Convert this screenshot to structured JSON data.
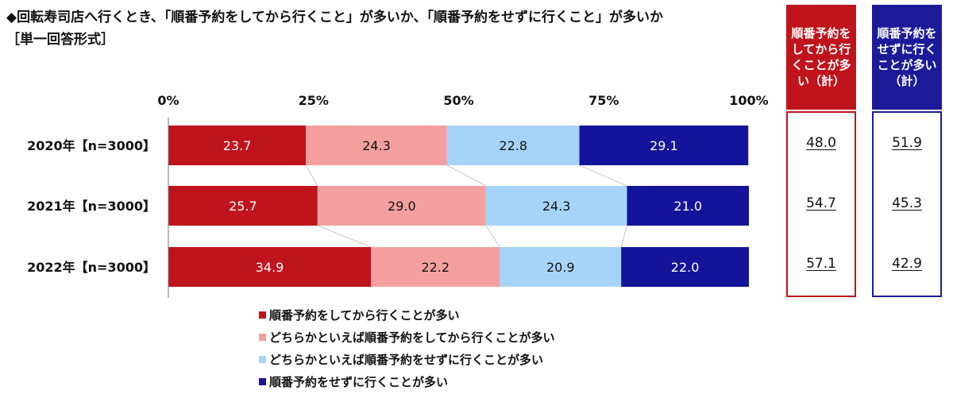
{
  "title": "◆回転寿司店へ行くとき、「順番予約をしてから行くこと」が多いか、「順番予約をせずに行くこと」が多いか",
  "subtitle": "［単一回答形式］",
  "chart_data": {
    "type": "bar",
    "orientation": "horizontal",
    "stacked": true,
    "categories": [
      "2020年【n=3000】",
      "2021年【n=3000】",
      "2022年【n=3000】"
    ],
    "xlim": [
      0,
      100
    ],
    "ticks": [
      "0%",
      "25%",
      "50%",
      "75%",
      "100%"
    ],
    "series": [
      {
        "name": "順番予約をしてから行くことが多い",
        "color": "#c0141c",
        "label_color": "#ffffff",
        "values": [
          23.7,
          25.7,
          34.9
        ]
      },
      {
        "name": "どちらかといえば順番予約をしてから行くことが多い",
        "color": "#f4a0a0",
        "label_color": "#111111",
        "values": [
          24.3,
          29.0,
          22.2
        ]
      },
      {
        "name": "どちらかといえば順番予約をせずに行くことが多い",
        "color": "#a6d4f8",
        "label_color": "#111111",
        "values": [
          22.8,
          24.3,
          20.9
        ]
      },
      {
        "name": "順番予約をせずに行くことが多い",
        "color": "#14149a",
        "label_color": "#ffffff",
        "values": [
          29.1,
          21.0,
          22.0
        ]
      }
    ],
    "legend_position": "bottom"
  },
  "summary": [
    {
      "header": "順番予約をしてから行くことが多い（計）",
      "color": "#c0141c",
      "values": [
        "48.0",
        "54.7",
        "57.1"
      ]
    },
    {
      "header": "順番予約をせずに行くことが多い（計）",
      "color": "#1b1b9a",
      "values": [
        "51.9",
        "45.3",
        "42.9"
      ]
    }
  ]
}
